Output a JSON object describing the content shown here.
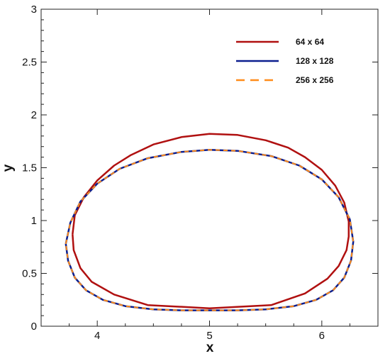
{
  "chart_data": {
    "type": "line",
    "title": "",
    "xlabel": "x",
    "ylabel": "y",
    "xlim": [
      3.5,
      6.5
    ],
    "ylim": [
      0,
      3
    ],
    "xticks": [
      4,
      5,
      6
    ],
    "xtick_labels": [
      "4",
      "5",
      "6"
    ],
    "yticks": [
      0,
      0.5,
      1,
      1.5,
      2,
      2.5,
      3
    ],
    "ytick_labels": [
      "0",
      "0.5",
      "1",
      "1.5",
      "2",
      "2.5",
      "3"
    ],
    "grid": false,
    "legend_position": "top-right",
    "series": [
      {
        "name": "64 x 64",
        "color": "#b01010",
        "dash": "solid",
        "x": [
          3.78,
          3.8,
          3.88,
          4.0,
          4.15,
          4.3,
          4.5,
          4.75,
          5.0,
          5.25,
          5.5,
          5.7,
          5.85,
          6.0,
          6.12,
          6.2,
          6.24,
          6.24,
          6.22,
          6.15,
          6.05,
          5.85,
          5.55,
          5.0,
          4.45,
          4.15,
          3.95,
          3.85,
          3.79,
          3.78
        ],
        "y": [
          0.87,
          1.05,
          1.22,
          1.38,
          1.52,
          1.62,
          1.72,
          1.79,
          1.82,
          1.81,
          1.76,
          1.69,
          1.6,
          1.48,
          1.33,
          1.17,
          0.99,
          0.85,
          0.72,
          0.57,
          0.45,
          0.31,
          0.2,
          0.17,
          0.2,
          0.3,
          0.42,
          0.55,
          0.72,
          0.87
        ]
      },
      {
        "name": "128 x 128",
        "color": "#0b1e8f",
        "dash": "solid",
        "x": [
          3.72,
          3.76,
          3.85,
          4.0,
          4.2,
          4.45,
          4.75,
          5.0,
          5.25,
          5.55,
          5.8,
          6.0,
          6.15,
          6.25,
          6.28,
          6.26,
          6.2,
          6.1,
          5.95,
          5.75,
          5.5,
          5.25,
          5.0,
          4.75,
          4.5,
          4.25,
          4.05,
          3.9,
          3.8,
          3.74,
          3.72
        ],
        "y": [
          0.78,
          0.98,
          1.18,
          1.35,
          1.49,
          1.59,
          1.65,
          1.67,
          1.66,
          1.61,
          1.52,
          1.39,
          1.22,
          1.01,
          0.8,
          0.62,
          0.46,
          0.34,
          0.25,
          0.19,
          0.16,
          0.15,
          0.15,
          0.15,
          0.16,
          0.19,
          0.25,
          0.34,
          0.46,
          0.62,
          0.78
        ]
      },
      {
        "name": "256 x 256",
        "color": "#ff8c1a",
        "dash": "dashed",
        "x": [
          3.72,
          3.76,
          3.85,
          4.0,
          4.2,
          4.45,
          4.75,
          5.0,
          5.25,
          5.55,
          5.8,
          6.0,
          6.15,
          6.25,
          6.28,
          6.26,
          6.2,
          6.1,
          5.95,
          5.75,
          5.5,
          5.25,
          5.0,
          4.75,
          4.5,
          4.25,
          4.05,
          3.9,
          3.8,
          3.74,
          3.72
        ],
        "y": [
          0.78,
          0.98,
          1.18,
          1.35,
          1.49,
          1.59,
          1.65,
          1.67,
          1.66,
          1.61,
          1.52,
          1.39,
          1.22,
          1.01,
          0.8,
          0.62,
          0.46,
          0.34,
          0.25,
          0.19,
          0.16,
          0.15,
          0.15,
          0.15,
          0.16,
          0.19,
          0.25,
          0.34,
          0.46,
          0.62,
          0.78
        ]
      }
    ]
  }
}
